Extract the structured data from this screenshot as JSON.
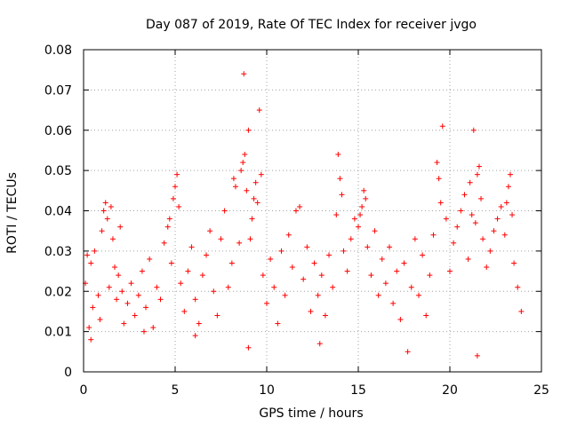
{
  "chart_data": {
    "type": "scatter",
    "title": "Day 087 of 2019, Rate Of TEC Index for receiver jvgo",
    "xlabel": "GPS time / hours",
    "ylabel": "ROTI / TECUs",
    "xlim": [
      0,
      25
    ],
    "ylim": [
      0,
      0.08
    ],
    "grid": true,
    "marker": "plus",
    "color": "#ff0000",
    "x_ticks": [
      "0",
      "5",
      "10",
      "15",
      "20",
      "25"
    ],
    "y_ticks": [
      "0",
      "0.01",
      "0.02",
      "0.03",
      "0.04",
      "0.05",
      "0.06",
      "0.07",
      "0.08"
    ],
    "x_tick_values": [
      0,
      5,
      10,
      15,
      20,
      25
    ],
    "y_tick_values": [
      0,
      0.01,
      0.02,
      0.03,
      0.04,
      0.05,
      0.06,
      0.07,
      0.08
    ],
    "series": [
      {
        "name": "ROTI",
        "points": [
          [
            0.1,
            0.022
          ],
          [
            0.2,
            0.029
          ],
          [
            0.3,
            0.011
          ],
          [
            0.4,
            0.027
          ],
          [
            0.5,
            0.016
          ],
          [
            0.6,
            0.03
          ],
          [
            0.8,
            0.019
          ],
          [
            0.9,
            0.013
          ],
          [
            1.0,
            0.035
          ],
          [
            1.1,
            0.04
          ],
          [
            1.2,
            0.042
          ],
          [
            1.3,
            0.038
          ],
          [
            1.4,
            0.021
          ],
          [
            1.5,
            0.041
          ],
          [
            1.6,
            0.033
          ],
          [
            1.7,
            0.026
          ],
          [
            1.8,
            0.018
          ],
          [
            1.9,
            0.024
          ],
          [
            2.0,
            0.036
          ],
          [
            2.1,
            0.02
          ],
          [
            2.2,
            0.012
          ],
          [
            2.4,
            0.017
          ],
          [
            2.6,
            0.022
          ],
          [
            2.8,
            0.014
          ],
          [
            3.0,
            0.019
          ],
          [
            3.2,
            0.025
          ],
          [
            3.4,
            0.016
          ],
          [
            3.6,
            0.028
          ],
          [
            3.8,
            0.011
          ],
          [
            4.0,
            0.021
          ],
          [
            4.2,
            0.018
          ],
          [
            4.4,
            0.032
          ],
          [
            4.6,
            0.036
          ],
          [
            4.7,
            0.038
          ],
          [
            4.8,
            0.027
          ],
          [
            4.9,
            0.043
          ],
          [
            5.0,
            0.046
          ],
          [
            5.1,
            0.049
          ],
          [
            5.2,
            0.041
          ],
          [
            5.3,
            0.022
          ],
          [
            5.5,
            0.015
          ],
          [
            5.7,
            0.025
          ],
          [
            5.9,
            0.031
          ],
          [
            6.1,
            0.018
          ],
          [
            6.3,
            0.012
          ],
          [
            6.5,
            0.024
          ],
          [
            6.7,
            0.029
          ],
          [
            6.9,
            0.035
          ],
          [
            7.1,
            0.02
          ],
          [
            7.3,
            0.014
          ],
          [
            7.5,
            0.033
          ],
          [
            7.7,
            0.04
          ],
          [
            7.9,
            0.021
          ],
          [
            8.1,
            0.027
          ],
          [
            8.2,
            0.048
          ],
          [
            8.3,
            0.046
          ],
          [
            8.5,
            0.032
          ],
          [
            8.6,
            0.05
          ],
          [
            8.7,
            0.052
          ],
          [
            8.75,
            0.074
          ],
          [
            8.8,
            0.054
          ],
          [
            8.9,
            0.045
          ],
          [
            9.0,
            0.06
          ],
          [
            9.1,
            0.033
          ],
          [
            9.2,
            0.038
          ],
          [
            9.3,
            0.043
          ],
          [
            9.4,
            0.047
          ],
          [
            9.5,
            0.042
          ],
          [
            9.6,
            0.065
          ],
          [
            9.7,
            0.049
          ],
          [
            9.8,
            0.024
          ],
          [
            10.0,
            0.017
          ],
          [
            10.2,
            0.028
          ],
          [
            10.4,
            0.021
          ],
          [
            10.6,
            0.012
          ],
          [
            10.8,
            0.03
          ],
          [
            11.0,
            0.019
          ],
          [
            11.2,
            0.034
          ],
          [
            11.4,
            0.026
          ],
          [
            11.6,
            0.04
          ],
          [
            11.8,
            0.041
          ],
          [
            12.0,
            0.023
          ],
          [
            12.2,
            0.031
          ],
          [
            12.4,
            0.015
          ],
          [
            12.6,
            0.027
          ],
          [
            12.8,
            0.019
          ],
          [
            13.0,
            0.024
          ],
          [
            13.2,
            0.014
          ],
          [
            13.4,
            0.029
          ],
          [
            13.6,
            0.021
          ],
          [
            13.8,
            0.039
          ],
          [
            13.9,
            0.054
          ],
          [
            14.0,
            0.048
          ],
          [
            14.1,
            0.044
          ],
          [
            14.2,
            0.03
          ],
          [
            14.4,
            0.025
          ],
          [
            14.6,
            0.033
          ],
          [
            14.8,
            0.038
          ],
          [
            15.0,
            0.036
          ],
          [
            15.1,
            0.039
          ],
          [
            15.2,
            0.041
          ],
          [
            15.3,
            0.045
          ],
          [
            15.4,
            0.043
          ],
          [
            15.5,
            0.031
          ],
          [
            15.7,
            0.024
          ],
          [
            15.9,
            0.035
          ],
          [
            16.1,
            0.019
          ],
          [
            16.3,
            0.028
          ],
          [
            16.5,
            0.022
          ],
          [
            16.7,
            0.031
          ],
          [
            16.9,
            0.017
          ],
          [
            17.1,
            0.025
          ],
          [
            17.3,
            0.013
          ],
          [
            17.5,
            0.027
          ],
          [
            17.7,
            0.005
          ],
          [
            17.9,
            0.021
          ],
          [
            18.1,
            0.033
          ],
          [
            18.3,
            0.019
          ],
          [
            18.5,
            0.029
          ],
          [
            18.7,
            0.014
          ],
          [
            18.9,
            0.024
          ],
          [
            19.1,
            0.034
          ],
          [
            19.3,
            0.052
          ],
          [
            19.4,
            0.048
          ],
          [
            19.5,
            0.042
          ],
          [
            19.6,
            0.061
          ],
          [
            19.8,
            0.038
          ],
          [
            20.0,
            0.025
          ],
          [
            20.2,
            0.032
          ],
          [
            20.4,
            0.036
          ],
          [
            20.6,
            0.04
          ],
          [
            20.8,
            0.044
          ],
          [
            21.0,
            0.028
          ],
          [
            21.1,
            0.047
          ],
          [
            21.2,
            0.039
          ],
          [
            21.3,
            0.06
          ],
          [
            21.4,
            0.037
          ],
          [
            21.5,
            0.049
          ],
          [
            21.6,
            0.051
          ],
          [
            21.7,
            0.043
          ],
          [
            21.8,
            0.033
          ],
          [
            22.0,
            0.026
          ],
          [
            22.2,
            0.03
          ],
          [
            22.4,
            0.035
          ],
          [
            22.6,
            0.038
          ],
          [
            22.8,
            0.041
          ],
          [
            23.0,
            0.034
          ],
          [
            23.1,
            0.042
          ],
          [
            23.2,
            0.046
          ],
          [
            23.3,
            0.049
          ],
          [
            23.4,
            0.039
          ],
          [
            23.5,
            0.027
          ],
          [
            23.7,
            0.021
          ],
          [
            23.9,
            0.015
          ],
          [
            21.5,
            0.004
          ],
          [
            9.0,
            0.006
          ],
          [
            12.9,
            0.007
          ],
          [
            3.3,
            0.01
          ],
          [
            0.4,
            0.008
          ],
          [
            6.1,
            0.009
          ]
        ]
      }
    ]
  }
}
